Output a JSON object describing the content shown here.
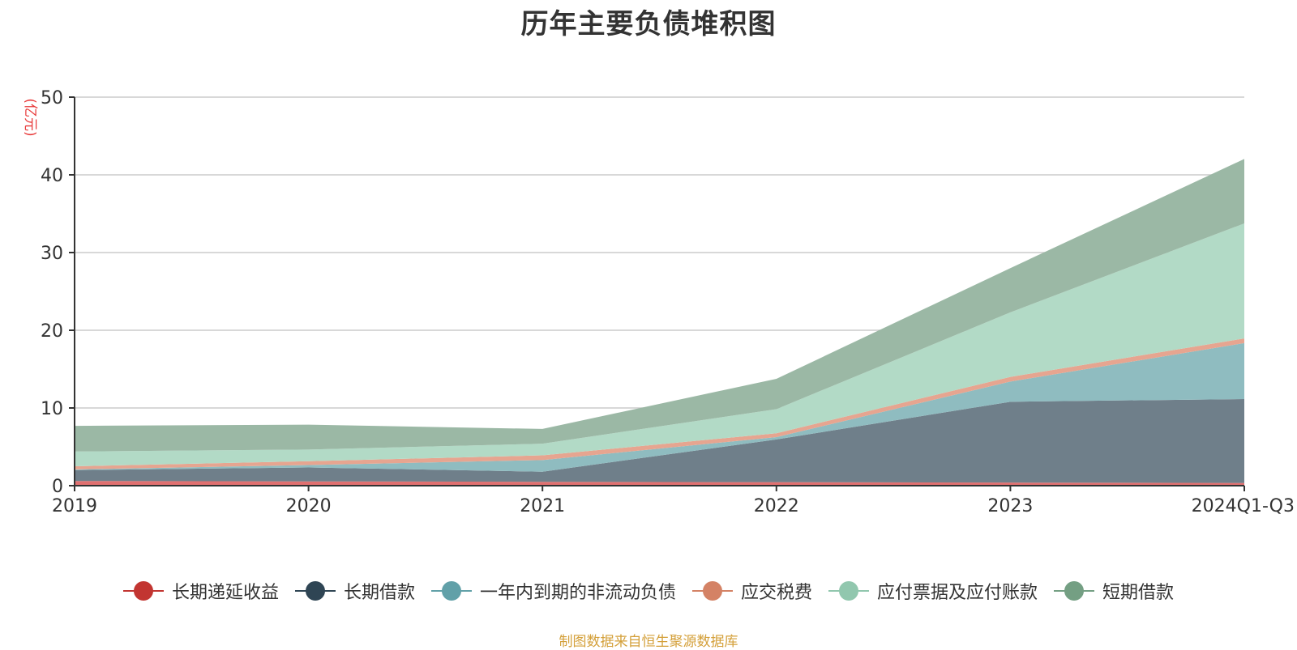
{
  "chart_data": {
    "type": "area",
    "stacked": true,
    "title": "历年主要负债堆积图",
    "ylabel": "(亿元)",
    "xlabel": "",
    "ylim": [
      0,
      50
    ],
    "yticks": [
      0,
      10,
      20,
      30,
      40,
      50
    ],
    "categories": [
      "2019",
      "2020",
      "2021",
      "2022",
      "2023",
      "2024Q1-Q3"
    ],
    "grid": true,
    "legend_position": "bottom",
    "series": [
      {
        "name": "长期递延收益",
        "color": "#c23531",
        "fill": "#e07070",
        "values": [
          0.6,
          0.55,
          0.5,
          0.45,
          0.4,
          0.35
        ]
      },
      {
        "name": "长期借款",
        "color": "#2f4554",
        "fill": "#6f7f8a",
        "values": [
          1.4,
          1.8,
          1.3,
          5.5,
          10.4,
          10.8
        ]
      },
      {
        "name": "一年内到期的非流动负债",
        "color": "#61a0a8",
        "fill": "#8fbcc0",
        "values": [
          0.1,
          0.3,
          1.5,
          0.3,
          2.6,
          7.2
        ]
      },
      {
        "name": "应交税费",
        "color": "#d48265",
        "fill": "#e6a590",
        "values": [
          0.4,
          0.5,
          0.6,
          0.5,
          0.6,
          0.6
        ]
      },
      {
        "name": "应付票据及应付账款",
        "color": "#91c7ae",
        "fill": "#b2dac6",
        "values": [
          1.9,
          1.5,
          1.5,
          3.1,
          8.3,
          14.8
        ]
      },
      {
        "name": "短期借款",
        "color": "#749f83",
        "fill": "#9bb8a5",
        "values": [
          3.3,
          3.2,
          1.9,
          3.9,
          5.7,
          8.3
        ]
      }
    ]
  },
  "source_note": "制图数据来自恒生聚源数据库"
}
